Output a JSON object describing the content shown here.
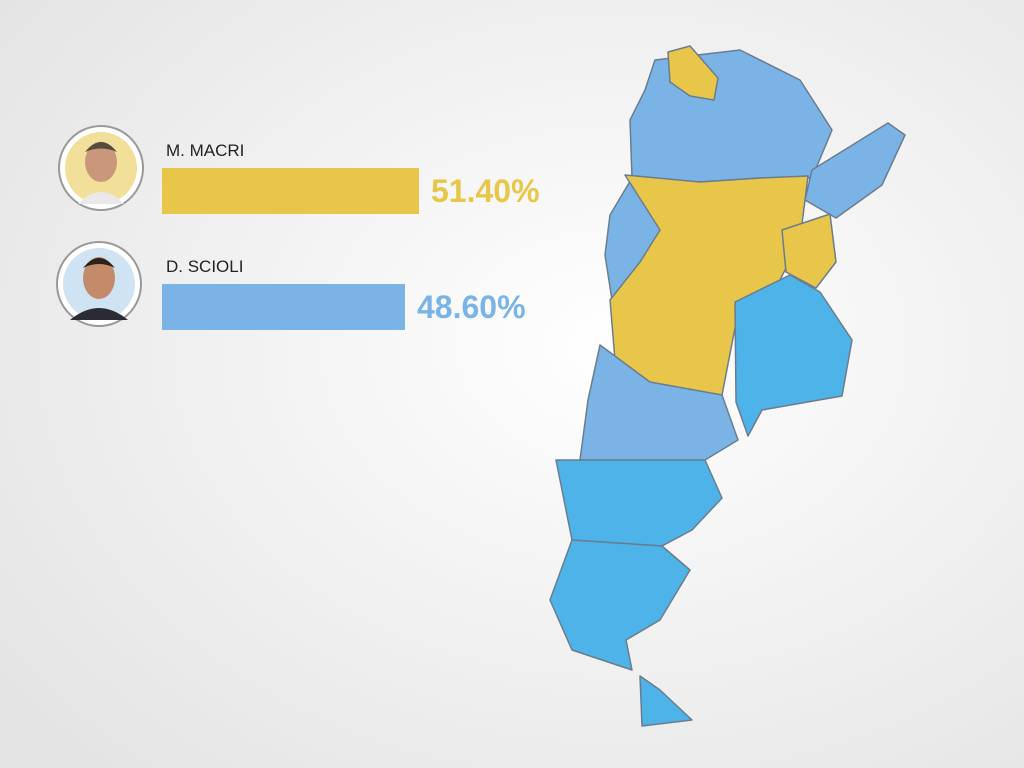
{
  "chart_data": {
    "type": "bar",
    "categories": [
      "M. MACRI",
      "D. SCIOLI"
    ],
    "values": [
      51.4,
      48.6
    ],
    "value_labels": [
      "51.40%",
      "48.60%"
    ],
    "colors": [
      "#e8c64a",
      "#7ab4e6"
    ]
  }
}
